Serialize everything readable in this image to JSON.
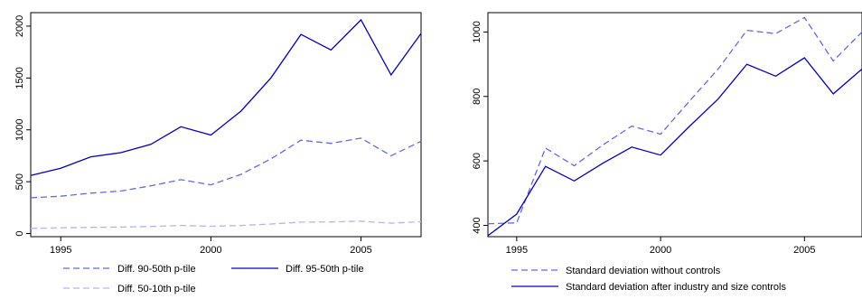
{
  "chart_data": [
    {
      "type": "line",
      "title": "",
      "xlabel": "",
      "ylabel": "",
      "xlim": [
        1994,
        2007
      ],
      "ylim": [
        -30,
        2130
      ],
      "x_ticks": [
        1995,
        2000,
        2005
      ],
      "y_ticks": [
        0,
        500,
        1000,
        1500,
        2000
      ],
      "grid": false,
      "legend_position": "bottom",
      "x": [
        1994,
        1995,
        1996,
        1997,
        1998,
        1999,
        2000,
        2001,
        2002,
        2003,
        2004,
        2005,
        2006,
        2007
      ],
      "series": [
        {
          "name": "Diff. 90-50th p-tile",
          "style": "dashed",
          "color": "#6666ee",
          "values": [
            345,
            360,
            390,
            410,
            460,
            520,
            470,
            570,
            720,
            900,
            870,
            920,
            750,
            890
          ]
        },
        {
          "name": "Diff. 95-50th p-tile",
          "style": "solid",
          "color": "#0000cc",
          "values": [
            560,
            630,
            740,
            780,
            860,
            1030,
            950,
            1180,
            1500,
            1920,
            1770,
            2060,
            1530,
            1930
          ]
        },
        {
          "name": "Diff. 50-10th p-tile",
          "style": "dashed",
          "color": "#b3b3f5",
          "values": [
            50,
            55,
            60,
            62,
            68,
            78,
            70,
            78,
            92,
            110,
            112,
            120,
            100,
            115
          ]
        }
      ]
    },
    {
      "type": "line",
      "title": "",
      "xlabel": "",
      "ylabel": "",
      "xlim": [
        1994,
        2007
      ],
      "ylim": [
        365,
        1060
      ],
      "x_ticks": [
        1995,
        2000,
        2005
      ],
      "y_ticks": [
        400,
        600,
        800,
        1000
      ],
      "grid": false,
      "legend_position": "bottom",
      "x": [
        1994,
        1995,
        1996,
        1997,
        1998,
        1999,
        2000,
        2001,
        2002,
        2003,
        2004,
        2005,
        2006,
        2007
      ],
      "series": [
        {
          "name": "Standard deviation without controls",
          "style": "dashed",
          "color": "#6666ee",
          "values": [
            405,
            408,
            640,
            585,
            650,
            708,
            683,
            785,
            885,
            1005,
            995,
            1045,
            910,
            1000
          ]
        },
        {
          "name": "Standard deviation after industry and size controls",
          "style": "solid",
          "color": "#0000cc",
          "values": [
            368,
            435,
            583,
            538,
            593,
            643,
            618,
            707,
            792,
            900,
            863,
            920,
            808,
            885
          ]
        }
      ]
    }
  ]
}
